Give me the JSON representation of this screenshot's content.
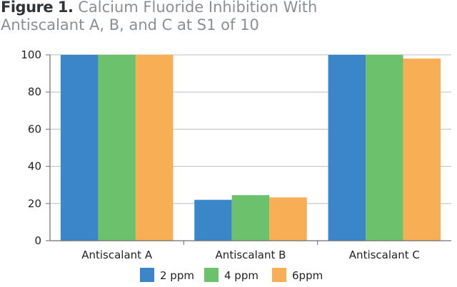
{
  "figure": {
    "label": "Figure 1.",
    "title_line1": "Calcium Fluoride Inhibition With",
    "title_line2": "Antiscalant A, B, and C at S1 of 10"
  },
  "chart_data": {
    "type": "bar",
    "title": "Figure 1. Calcium Fluoride Inhibition With Antiscalant A, B, and C at S1 of 10",
    "xlabel": "",
    "ylabel": "",
    "categories": [
      "Antiscalant A",
      "Antiscalant B",
      "Antiscalant C"
    ],
    "series": [
      {
        "name": "2 ppm",
        "color": "#3a86c8",
        "values": [
          100,
          22,
          100
        ]
      },
      {
        "name": "4 ppm",
        "color": "#6cc26c",
        "values": [
          100,
          24.5,
          100
        ]
      },
      {
        "name": "6ppm",
        "color": "#f7ae55",
        "values": [
          100,
          23.3,
          98
        ]
      }
    ],
    "ylim": [
      0,
      100
    ],
    "yticks": [
      "0",
      "20",
      "40",
      "60",
      "80",
      "100"
    ],
    "grid": true,
    "legend_position": "bottom"
  }
}
